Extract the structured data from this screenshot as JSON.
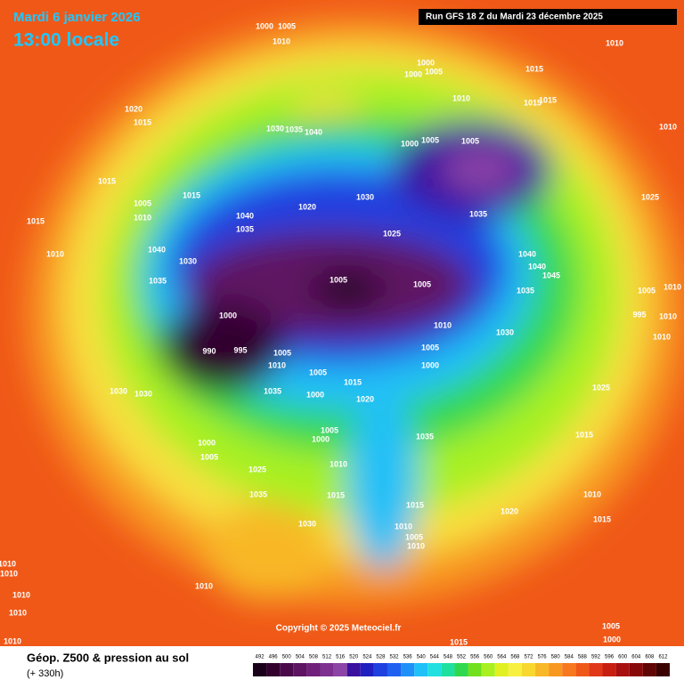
{
  "header": {
    "date": "Mardi 6 janvier 2026",
    "time": "13:00 locale",
    "run": "Run GFS 18 Z du Mardi 23 décembre 2025"
  },
  "footer": {
    "title": "Géop. Z500 & pression au sol",
    "lead": "(+ 330h)"
  },
  "copyright": "Copyright © 2025 Meteociel.fr",
  "scale": {
    "values": [
      492,
      496,
      500,
      504,
      508,
      512,
      516,
      520,
      524,
      528,
      532,
      536,
      540,
      544,
      548,
      552,
      556,
      560,
      564,
      568,
      572,
      576,
      580,
      584,
      588,
      592,
      596,
      600,
      604,
      608,
      612
    ],
    "colors": [
      "#1a0018",
      "#33002e",
      "#4a0a4a",
      "#5e1462",
      "#70207a",
      "#7e3090",
      "#8c44a6",
      "#3a10a0",
      "#2020c0",
      "#1e40e0",
      "#2060f0",
      "#2090f8",
      "#20c0f8",
      "#20e0e0",
      "#20e0a0",
      "#30d850",
      "#70e020",
      "#a8f020",
      "#e0f020",
      "#f8f040",
      "#f8d830",
      "#f8b828",
      "#f89820",
      "#f87820",
      "#f05818",
      "#e03818",
      "#c82010",
      "#a81010",
      "#880808",
      "#600404",
      "#3a0000"
    ]
  },
  "isobar_labels": [
    "1000",
    "1005",
    "1010",
    "1010",
    "1000",
    "1000",
    "1005",
    "1015",
    "1010",
    "1015",
    "1015",
    "1010",
    "1020",
    "1015",
    "1030",
    "1035",
    "1040",
    "1000",
    "1005",
    "1005",
    "1015",
    "1005",
    "1015",
    "1030",
    "1020",
    "1010",
    "1040",
    "1035",
    "1035",
    "1025",
    "1015",
    "1025",
    "1010",
    "1040",
    "1030",
    "1040",
    "1040",
    "1045",
    "1035",
    "1005",
    "1005",
    "1035",
    "1005",
    "1010",
    "995",
    "1010",
    "1000",
    "1010",
    "1030",
    "1010",
    "990",
    "995",
    "1005",
    "1005",
    "1010",
    "1000",
    "1005",
    "1015",
    "1035",
    "1000",
    "1020",
    "1030",
    "1025",
    "1030",
    "1005",
    "1035",
    "1000",
    "1015",
    "1000",
    "1005",
    "1010",
    "1025",
    "1035",
    "1015",
    "1010",
    "1015",
    "1020",
    "1015",
    "1030",
    "1010",
    "1005",
    "1010",
    "1010",
    "1010",
    "1010",
    "1010",
    "1010",
    "1005",
    "1010",
    "1015",
    "1000"
  ]
}
